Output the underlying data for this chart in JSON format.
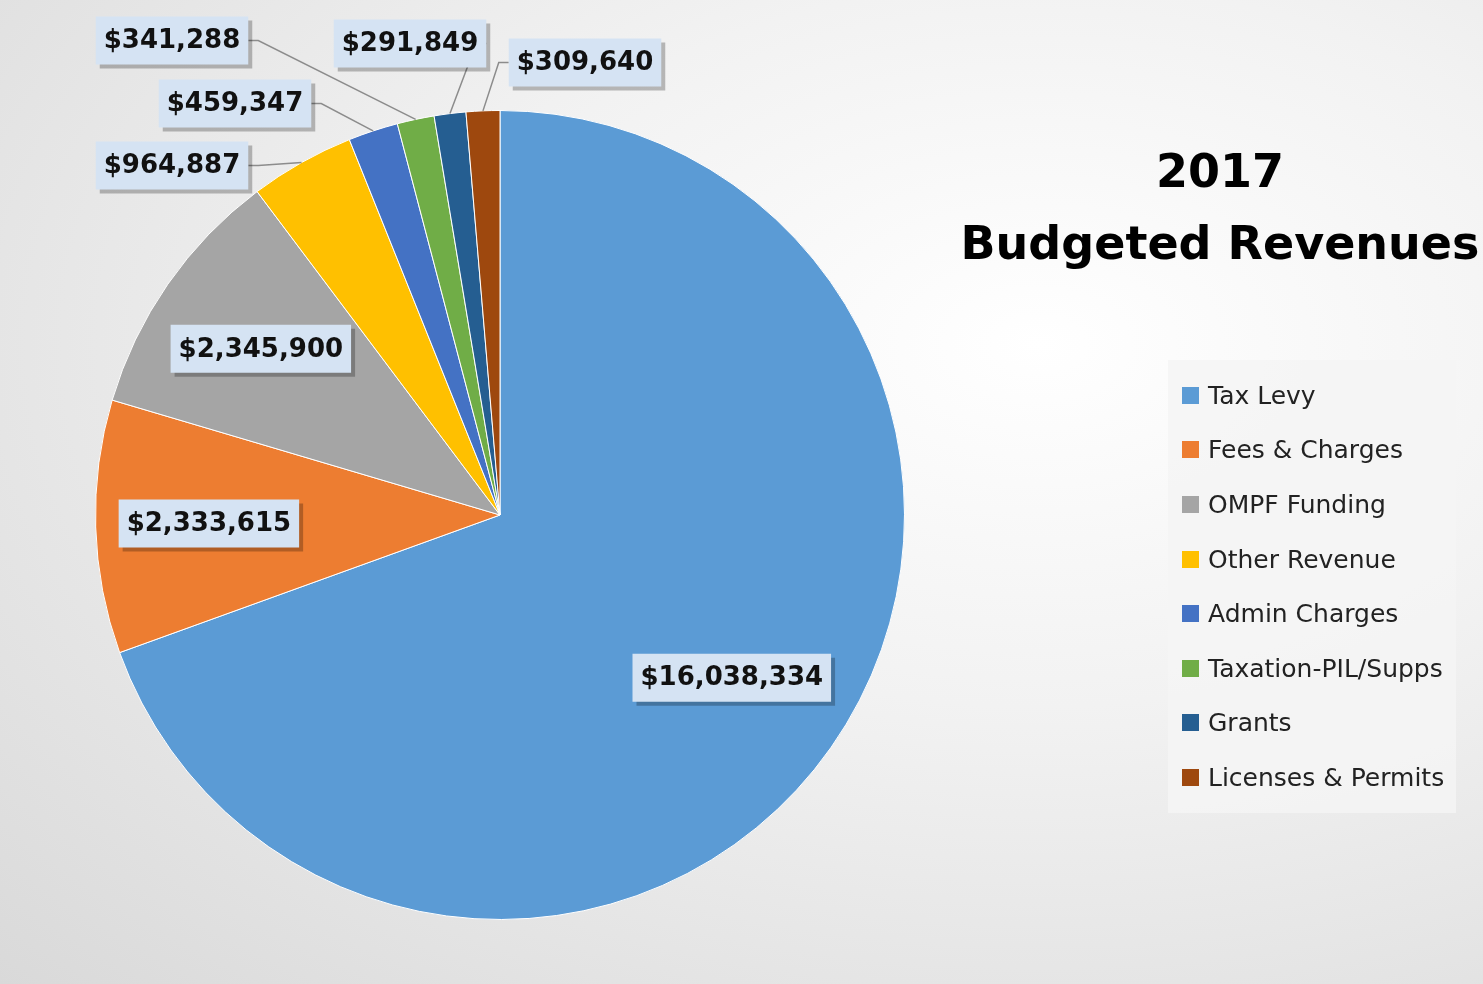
{
  "chart_data": {
    "type": "pie",
    "title": "2017\nBudgeted Revenues",
    "categories": [
      "Tax Levy",
      "Fees & Charges",
      "OMPF Funding",
      "Other Revenue",
      "Admin Charges",
      "Taxation-PIL/Supps",
      "Grants",
      "Licenses & Permits"
    ],
    "values": [
      16038334,
      2333615,
      2345900,
      964887,
      459347,
      341288,
      291849,
      309640
    ],
    "colors": [
      "#5b9bd5",
      "#ed7d31",
      "#a5a5a5",
      "#ffc000",
      "#4472c4",
      "#70ad47",
      "#255e91",
      "#9e480e"
    ],
    "value_labels": [
      "$16,038,334",
      "$2,333,615",
      "$2,345,900",
      "$964,887",
      "$459,347",
      "$341,288",
      "$291,849",
      "$309,640"
    ],
    "legend": "right"
  }
}
